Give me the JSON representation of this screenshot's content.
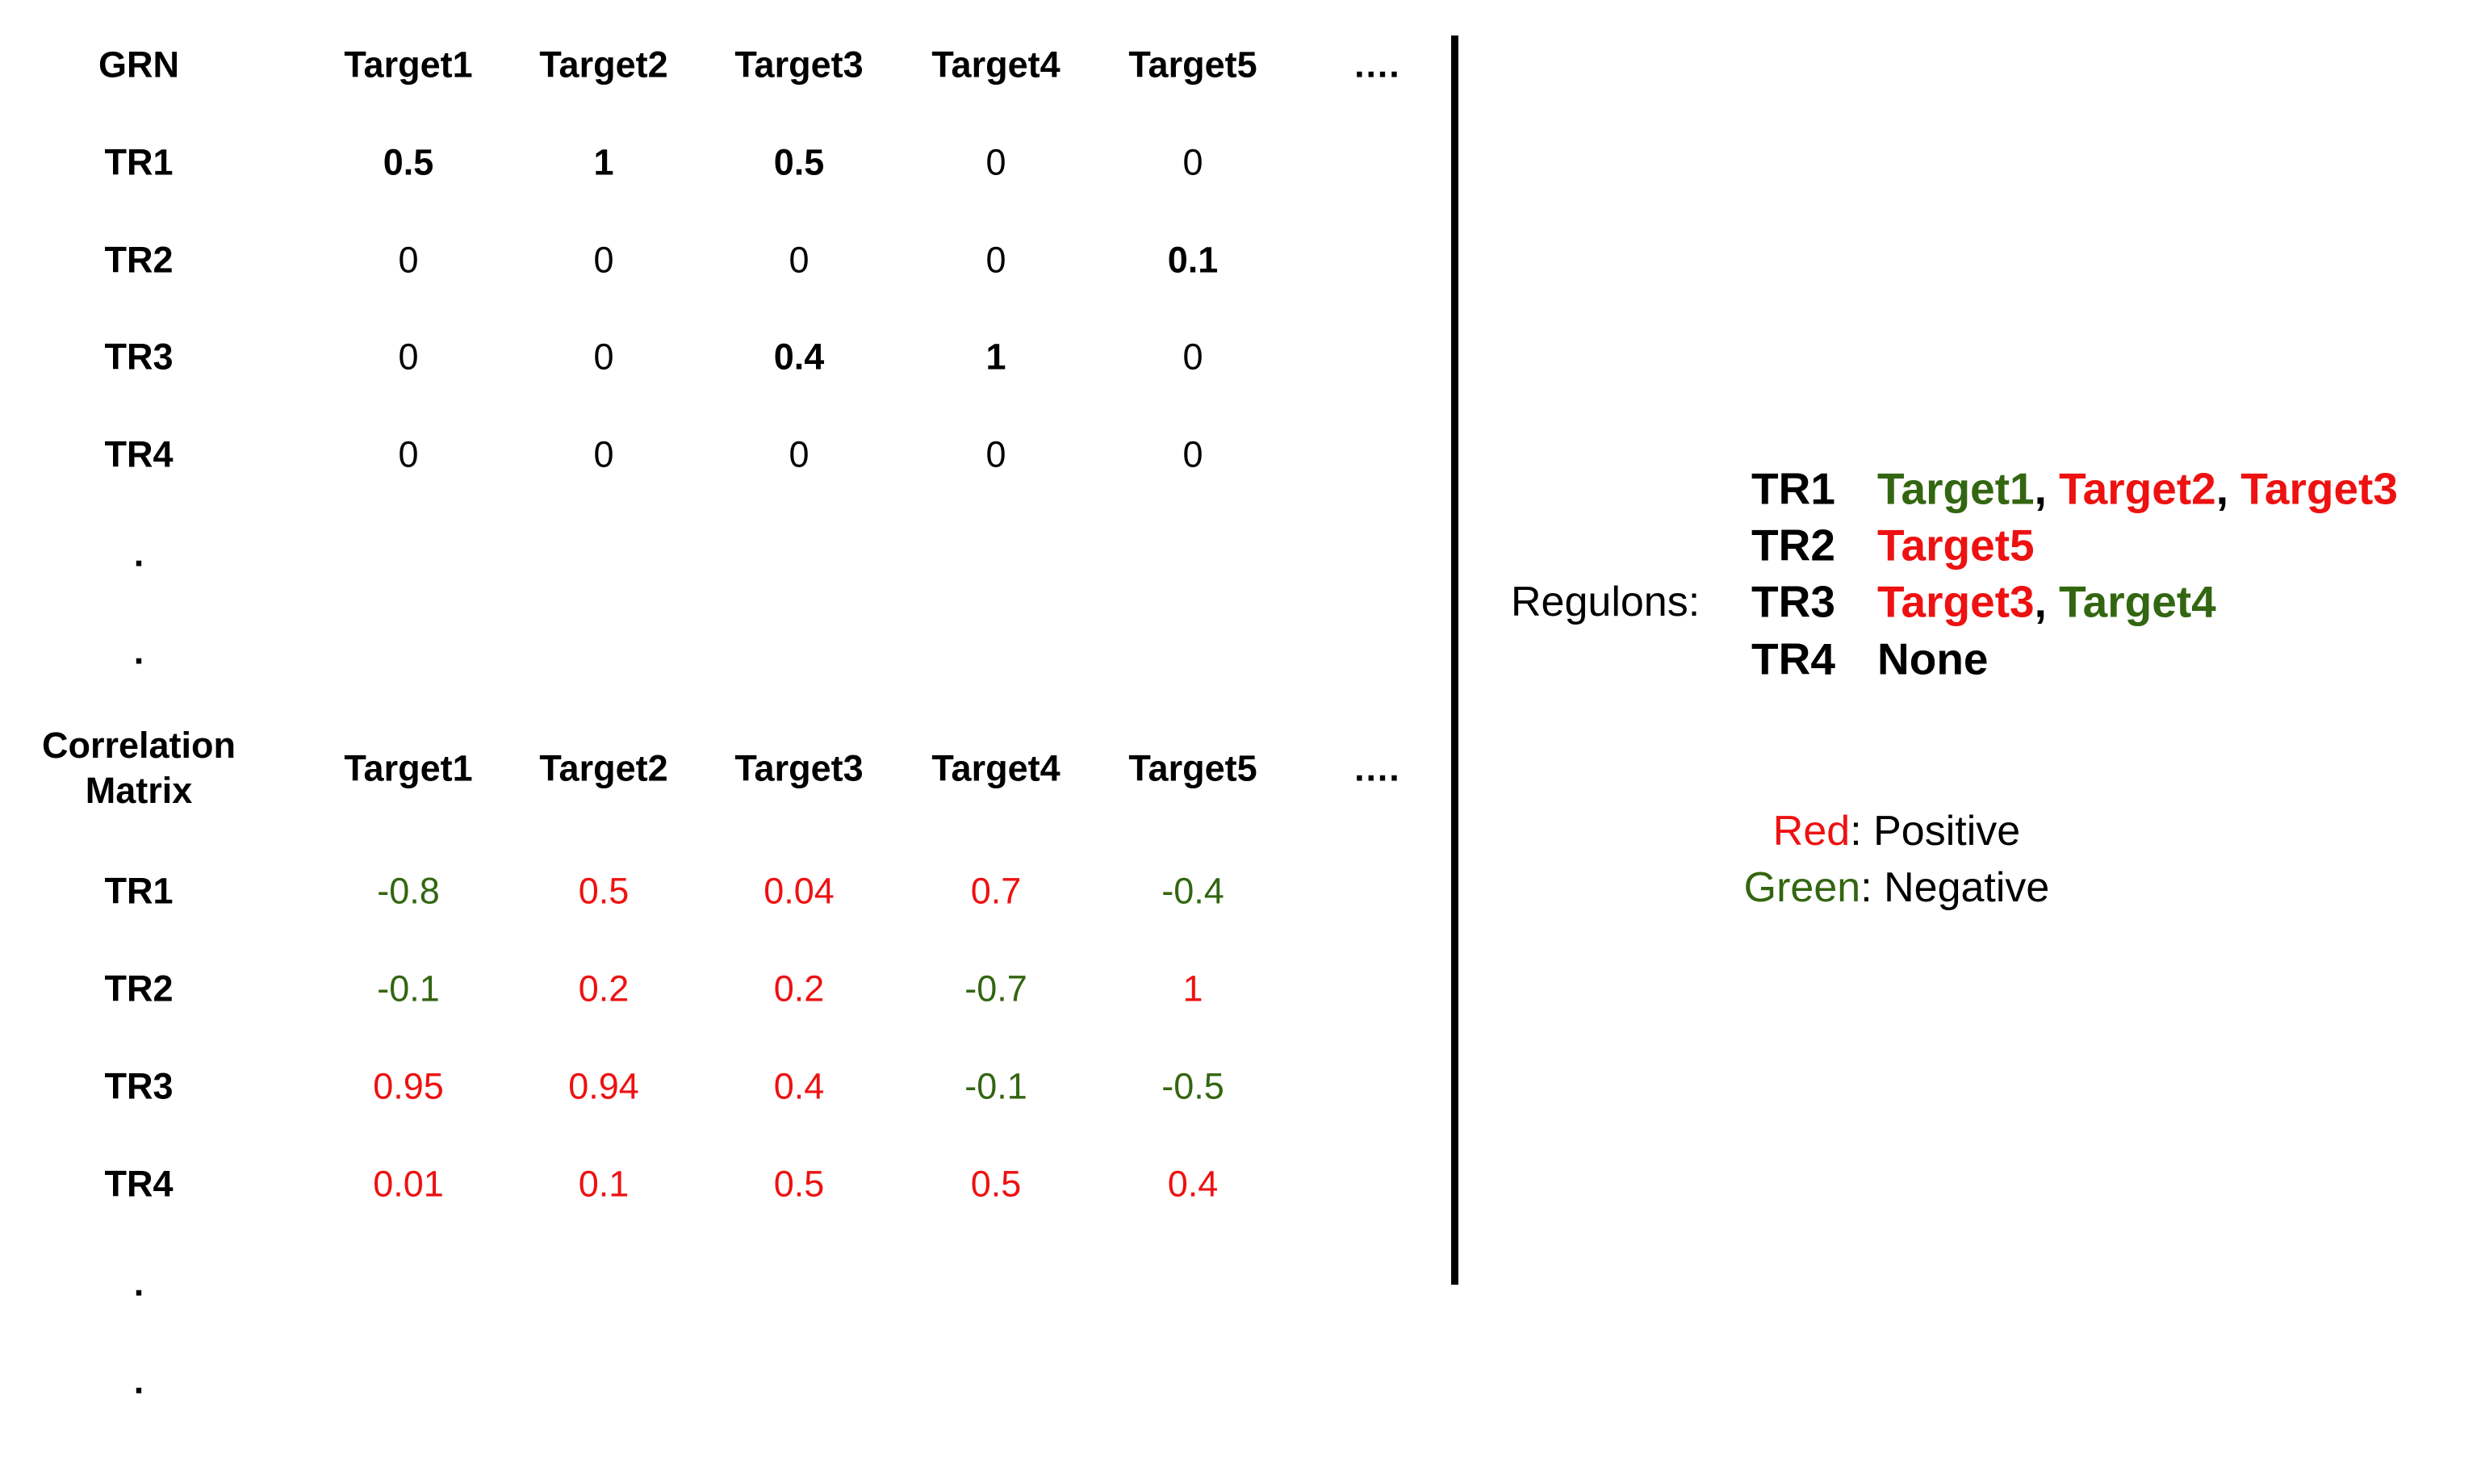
{
  "colors": {
    "positive": "#ee1111",
    "negative": "#336611",
    "text": "#000000"
  },
  "grn": {
    "header": "GRN",
    "columns": [
      "Target1",
      "Target2",
      "Target3",
      "Target4",
      "Target5",
      "…."
    ],
    "rows": [
      {
        "label": "TR1",
        "values": [
          "0.5",
          "1",
          "0.5",
          "0",
          "0"
        ],
        "bold": [
          true,
          true,
          true,
          false,
          false
        ]
      },
      {
        "label": "TR2",
        "values": [
          "0",
          "0",
          "0",
          "0",
          "0.1"
        ],
        "bold": [
          false,
          false,
          false,
          false,
          true
        ]
      },
      {
        "label": "TR3",
        "values": [
          "0",
          "0",
          "0.4",
          "1",
          "0"
        ],
        "bold": [
          false,
          false,
          true,
          true,
          false
        ]
      },
      {
        "label": "TR4",
        "values": [
          "0",
          "0",
          "0",
          "0",
          "0"
        ],
        "bold": [
          false,
          false,
          false,
          false,
          false
        ]
      }
    ],
    "ellipsis": [
      ".",
      "."
    ]
  },
  "correlation": {
    "header": "Correlation Matrix",
    "columns": [
      "Target1",
      "Target2",
      "Target3",
      "Target4",
      "Target5",
      "…."
    ],
    "rows": [
      {
        "label": "TR1",
        "values": [
          "-0.8",
          "0.5",
          "0.04",
          "0.7",
          "-0.4"
        ]
      },
      {
        "label": "TR2",
        "values": [
          "-0.1",
          "0.2",
          "0.2",
          "-0.7",
          "1"
        ]
      },
      {
        "label": "TR3",
        "values": [
          "0.95",
          "0.94",
          "0.4",
          "-0.1",
          "-0.5"
        ]
      },
      {
        "label": "TR4",
        "values": [
          "0.01",
          "0.1",
          "0.5",
          "0.5",
          "0.4"
        ]
      }
    ],
    "ellipsis": [
      ".",
      "."
    ]
  },
  "regulons": {
    "label": "Regulons:",
    "items": [
      {
        "tr": "TR1",
        "targets": [
          {
            "text": "Target1",
            "sign": "negative"
          },
          {
            "text": "Target2",
            "sign": "positive"
          },
          {
            "text": "Target3",
            "sign": "positive"
          }
        ]
      },
      {
        "tr": "TR2",
        "targets": [
          {
            "text": "Target5",
            "sign": "positive"
          }
        ]
      },
      {
        "tr": "TR3",
        "targets": [
          {
            "text": "Target3",
            "sign": "positive"
          },
          {
            "text": "Target4",
            "sign": "negative"
          }
        ]
      },
      {
        "tr": "TR4",
        "targets": [
          {
            "text": "None",
            "sign": "none"
          }
        ]
      }
    ],
    "separator": ", "
  },
  "legend": {
    "red_word": "Red",
    "red_desc": ": Positive",
    "green_word": "Green",
    "green_desc": ": Negative"
  }
}
